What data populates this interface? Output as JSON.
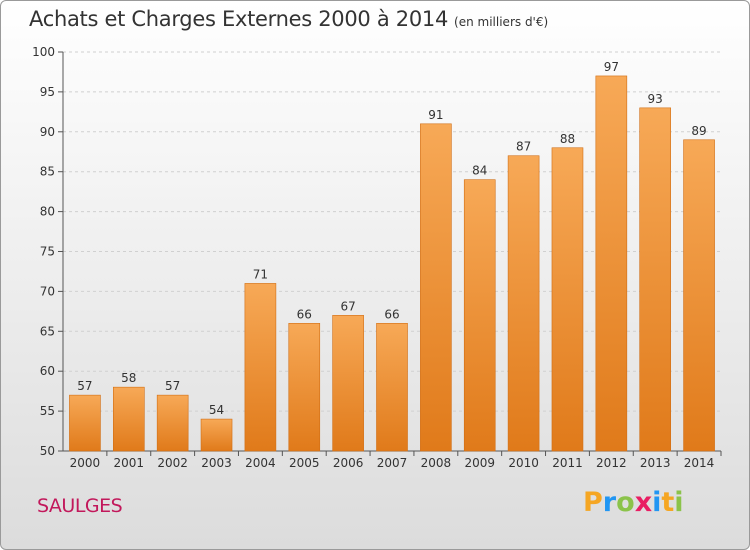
{
  "header": {
    "title": "Achats et Charges Externes 2000 à 2014",
    "subtitle": "(en milliers d'€)"
  },
  "footer": {
    "commune": "SAULGES",
    "brand": {
      "letters": [
        "P",
        "r",
        "o",
        "x",
        "i",
        "t",
        "i"
      ],
      "colors": [
        "#f5a623",
        "#2196f3",
        "#8bc34a",
        "#e91e63",
        "#2196f3",
        "#f5a623",
        "#8bc34a"
      ]
    }
  },
  "colors": {
    "bar_top": "#f7a957",
    "bar_bottom": "#e07a1a",
    "bar_edge": "#d16e14",
    "grid": "#d0d0d0",
    "axis": "#555555"
  },
  "chart_data": {
    "type": "bar",
    "title": "Achats et Charges Externes 2000 à 2014",
    "subtitle": "(en milliers d'€)",
    "xlabel": "",
    "ylabel": "",
    "categories": [
      "2000",
      "2001",
      "2002",
      "2003",
      "2004",
      "2005",
      "2006",
      "2007",
      "2008",
      "2009",
      "2010",
      "2011",
      "2012",
      "2013",
      "2014"
    ],
    "values": [
      57,
      58,
      57,
      54,
      71,
      66,
      67,
      66,
      91,
      84,
      87,
      88,
      97,
      93,
      89
    ],
    "ylim": [
      50,
      100
    ],
    "yticks": [
      50,
      55,
      60,
      65,
      70,
      75,
      80,
      85,
      90,
      95,
      100
    ],
    "grid": true,
    "data_labels": true
  }
}
